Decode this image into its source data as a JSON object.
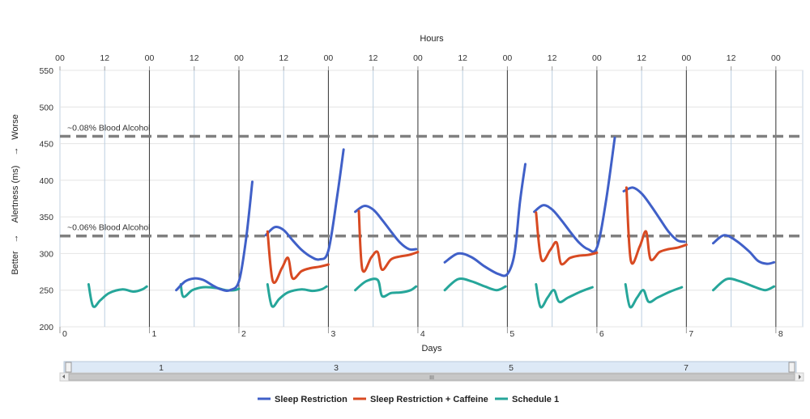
{
  "chart_data": {
    "type": "line",
    "title": "",
    "x_top_label": "Hours",
    "x_bottom_label": "Days",
    "y_label": "Alertness (ms)",
    "y_worse_label": "Worse",
    "y_better_label": "Better",
    "y_arrow_up": "→",
    "y_arrow_down": "→",
    "ylim": [
      200,
      550
    ],
    "xlim": [
      0,
      8.3
    ],
    "y_ticks": [
      "200",
      "250",
      "300",
      "350",
      "400",
      "450",
      "500",
      "550"
    ],
    "x_ticks": [
      "0",
      "1",
      "2",
      "3",
      "4",
      "5",
      "6",
      "7",
      "8"
    ],
    "hour_ticks": [
      "00",
      "12",
      "00",
      "12",
      "00",
      "12",
      "00",
      "12",
      "00",
      "12",
      "00",
      "12",
      "00",
      "12",
      "00",
      "12",
      "00"
    ],
    "reference_lines": [
      {
        "label": "~0.08% Blood Alcohol",
        "y": 460
      },
      {
        "label": "~0.06% Blood Alcohol",
        "y": 324
      }
    ],
    "grid": true,
    "legend_position": "bottom",
    "series": [
      {
        "name": "Sleep Restriction",
        "color": "#4060c8",
        "segments": [
          [
            [
              1.3,
              250
            ],
            [
              1.4,
              262
            ],
            [
              1.5,
              266
            ],
            [
              1.6,
              264
            ],
            [
              1.7,
              257
            ],
            [
              1.8,
              251
            ],
            [
              1.9,
              250
            ],
            [
              2.0,
              262
            ],
            [
              2.08,
              320
            ],
            [
              2.15,
              398
            ]
          ],
          [
            [
              2.3,
              325
            ],
            [
              2.4,
              336
            ],
            [
              2.5,
              332
            ],
            [
              2.6,
              318
            ],
            [
              2.7,
              305
            ],
            [
              2.8,
              296
            ],
            [
              2.9,
              292
            ],
            [
              3.0,
              304
            ],
            [
              3.1,
              380
            ],
            [
              3.17,
              442
            ]
          ],
          [
            [
              3.3,
              357
            ],
            [
              3.4,
              365
            ],
            [
              3.5,
              360
            ],
            [
              3.6,
              346
            ],
            [
              3.7,
              330
            ],
            [
              3.8,
              315
            ],
            [
              3.9,
              306
            ],
            [
              3.98,
              306
            ]
          ],
          [
            [
              4.3,
              288
            ],
            [
              4.45,
              300
            ],
            [
              4.6,
              295
            ],
            [
              4.75,
              282
            ],
            [
              4.9,
              272
            ],
            [
              5.0,
              272
            ],
            [
              5.08,
              300
            ],
            [
              5.14,
              370
            ],
            [
              5.2,
              422
            ]
          ],
          [
            [
              5.3,
              357
            ],
            [
              5.4,
              366
            ],
            [
              5.5,
              360
            ],
            [
              5.6,
              346
            ],
            [
              5.7,
              330
            ],
            [
              5.8,
              315
            ],
            [
              5.9,
              306
            ],
            [
              6.0,
              308
            ],
            [
              6.1,
              370
            ],
            [
              6.2,
              458
            ]
          ],
          [
            [
              6.3,
              385
            ],
            [
              6.4,
              390
            ],
            [
              6.5,
              382
            ],
            [
              6.6,
              366
            ],
            [
              6.7,
              348
            ],
            [
              6.8,
              330
            ],
            [
              6.9,
              318
            ],
            [
              6.98,
              316
            ]
          ],
          [
            [
              7.3,
              314
            ],
            [
              7.42,
              325
            ],
            [
              7.55,
              318
            ],
            [
              7.7,
              303
            ],
            [
              7.8,
              290
            ],
            [
              7.9,
              286
            ],
            [
              7.98,
              288
            ]
          ]
        ]
      },
      {
        "name": "Sleep Restriction + Caffeine",
        "color": "#d84a22",
        "segments": [
          [
            [
              2.32,
              330
            ],
            [
              2.38,
              262
            ],
            [
              2.48,
              280
            ],
            [
              2.55,
              294
            ],
            [
              2.6,
              266
            ],
            [
              2.7,
              276
            ],
            [
              2.8,
              280
            ],
            [
              2.9,
              282
            ],
            [
              3.0,
              285
            ]
          ],
          [
            [
              3.34,
              358
            ],
            [
              3.38,
              278
            ],
            [
              3.48,
              295
            ],
            [
              3.55,
              302
            ],
            [
              3.6,
              278
            ],
            [
              3.7,
              292
            ],
            [
              3.8,
              296
            ],
            [
              3.9,
              298
            ],
            [
              4.0,
              302
            ]
          ],
          [
            [
              5.32,
              356
            ],
            [
              5.38,
              292
            ],
            [
              5.48,
              305
            ],
            [
              5.55,
              315
            ],
            [
              5.6,
              286
            ],
            [
              5.7,
              294
            ],
            [
              5.8,
              297
            ],
            [
              5.9,
              298
            ],
            [
              6.0,
              301
            ]
          ],
          [
            [
              6.33,
              390
            ],
            [
              6.38,
              290
            ],
            [
              6.48,
              310
            ],
            [
              6.55,
              330
            ],
            [
              6.6,
              292
            ],
            [
              6.7,
              302
            ],
            [
              6.8,
              306
            ],
            [
              6.9,
              308
            ],
            [
              7.0,
              312
            ]
          ]
        ]
      },
      {
        "name": "Schedule 1",
        "color": "#26a69a",
        "segments": [
          [
            [
              0.32,
              258
            ],
            [
              0.37,
              228
            ],
            [
              0.45,
              236
            ],
            [
              0.55,
              246
            ],
            [
              0.7,
              251
            ],
            [
              0.82,
              248
            ],
            [
              0.92,
              251
            ],
            [
              0.97,
              255
            ]
          ],
          [
            [
              1.35,
              258
            ],
            [
              1.38,
              241
            ],
            [
              1.48,
              250
            ],
            [
              1.6,
              254
            ],
            [
              1.75,
              253
            ],
            [
              1.85,
              250
            ],
            [
              1.95,
              250
            ],
            [
              2.0,
              252
            ]
          ],
          [
            [
              2.32,
              258
            ],
            [
              2.37,
              228
            ],
            [
              2.45,
              238
            ],
            [
              2.55,
              247
            ],
            [
              2.7,
              251
            ],
            [
              2.82,
              249
            ],
            [
              2.92,
              251
            ],
            [
              2.98,
              255
            ]
          ],
          [
            [
              3.3,
              250
            ],
            [
              3.42,
              262
            ],
            [
              3.55,
              264
            ],
            [
              3.6,
              242
            ],
            [
              3.7,
              246
            ],
            [
              3.82,
              247
            ],
            [
              3.92,
              250
            ],
            [
              3.98,
              255
            ]
          ],
          [
            [
              4.3,
              250
            ],
            [
              4.45,
              265
            ],
            [
              4.6,
              262
            ],
            [
              4.75,
              255
            ],
            [
              4.88,
              250
            ],
            [
              4.98,
              255
            ]
          ],
          [
            [
              5.32,
              258
            ],
            [
              5.37,
              227
            ],
            [
              5.45,
              240
            ],
            [
              5.52,
              250
            ],
            [
              5.58,
              234
            ],
            [
              5.68,
              240
            ],
            [
              5.82,
              248
            ],
            [
              5.95,
              254
            ]
          ],
          [
            [
              6.32,
              258
            ],
            [
              6.37,
              227
            ],
            [
              6.45,
              240
            ],
            [
              6.52,
              250
            ],
            [
              6.58,
              234
            ],
            [
              6.68,
              240
            ],
            [
              6.82,
              248
            ],
            [
              6.95,
              254
            ]
          ],
          [
            [
              7.3,
              250
            ],
            [
              7.45,
              265
            ],
            [
              7.6,
              262
            ],
            [
              7.75,
              255
            ],
            [
              7.88,
              250
            ],
            [
              7.98,
              255
            ]
          ]
        ]
      }
    ]
  },
  "navigator": {
    "labels": [
      "1",
      "3",
      "5",
      "7"
    ],
    "grip_symbol": "III"
  }
}
